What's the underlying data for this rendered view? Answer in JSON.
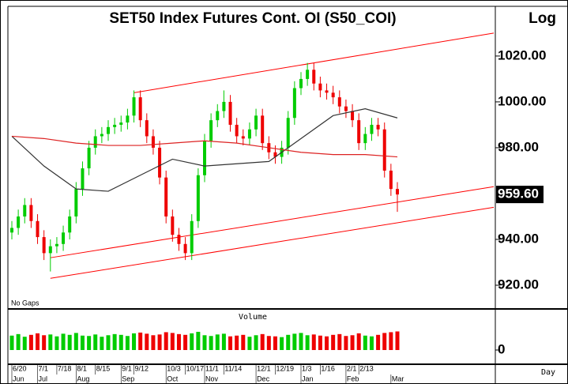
{
  "chart_data": {
    "type": "candlestick",
    "title": "SET50 Index Futures Cont. OI (S50_COI)",
    "scale_label": "Log",
    "log": false,
    "gap_label": "No Gaps",
    "period_label": "Day",
    "up_color": "#00cc00",
    "down_color": "#ee0000",
    "open": [
      943,
      945,
      950,
      955,
      948,
      941,
      934,
      937,
      938,
      943,
      950,
      962,
      971,
      980,
      985,
      986,
      989,
      990,
      991,
      994,
      1002,
      992,
      985,
      980,
      967,
      950,
      942,
      938,
      934,
      948,
      968,
      983,
      992,
      996,
      1000,
      990,
      985,
      984,
      988,
      994,
      982,
      978,
      976,
      980,
      993,
      1006,
      1010,
      1014,
      1008,
      1005,
      1004,
      1002,
      998,
      996,
      992,
      982,
      986,
      990,
      988,
      970,
      962
    ],
    "high": [
      948,
      953,
      958,
      958,
      951,
      944,
      940,
      941,
      946,
      953,
      965,
      974,
      983,
      988,
      989,
      992,
      993,
      994,
      997,
      1005,
      1005,
      995,
      988,
      983,
      970,
      953,
      945,
      941,
      951,
      971,
      986,
      995,
      999,
      1005,
      1003,
      993,
      988,
      991,
      997,
      997,
      985,
      981,
      983,
      996,
      1009,
      1013,
      1017,
      1017,
      1011,
      1008,
      1007,
      1005,
      1001,
      999,
      995,
      989,
      993,
      993,
      991,
      973,
      965
    ],
    "low": [
      940,
      942,
      947,
      945,
      938,
      931,
      926,
      934,
      935,
      940,
      947,
      959,
      968,
      977,
      982,
      983,
      986,
      987,
      988,
      991,
      989,
      982,
      977,
      964,
      947,
      939,
      935,
      931,
      931,
      945,
      965,
      980,
      989,
      993,
      987,
      982,
      981,
      981,
      985,
      979,
      975,
      973,
      973,
      977,
      990,
      1003,
      1007,
      1005,
      1002,
      1001,
      999,
      995,
      993,
      989,
      979,
      979,
      983,
      985,
      967,
      959,
      952
    ],
    "close": [
      945,
      950,
      955,
      948,
      941,
      934,
      937,
      938,
      943,
      950,
      962,
      971,
      980,
      985,
      986,
      989,
      990,
      991,
      994,
      1002,
      992,
      985,
      980,
      967,
      950,
      942,
      938,
      934,
      948,
      968,
      983,
      992,
      996,
      1000,
      990,
      985,
      984,
      988,
      994,
      982,
      978,
      976,
      980,
      993,
      1006,
      1010,
      1014,
      1008,
      1005,
      1004,
      1002,
      998,
      996,
      992,
      982,
      986,
      990,
      988,
      970,
      962,
      959.6
    ],
    "last_price": {
      "value": 959.6,
      "label": "959.60"
    },
    "ylim": [
      910,
      1041
    ],
    "yticks": [
      {
        "value": 920,
        "label": "920.00"
      },
      {
        "value": 940,
        "label": "940.00"
      },
      {
        "value": 980,
        "label": "980.00"
      },
      {
        "value": 1000,
        "label": "1000.00"
      },
      {
        "value": 1020,
        "label": "1020.00"
      }
    ],
    "xlim": [
      0,
      75
    ],
    "xticks": [
      {
        "value": 0,
        "label": "6/20"
      },
      {
        "value": 4,
        "label": "7/1"
      },
      {
        "value": 7,
        "label": "7/18"
      },
      {
        "value": 10,
        "label": "8/1"
      },
      {
        "value": 13,
        "label": "8/15"
      },
      {
        "value": 17,
        "label": "9/1"
      },
      {
        "value": 19,
        "label": "9/12"
      },
      {
        "value": 24,
        "label": "10/3"
      },
      {
        "value": 27,
        "label": "10/17"
      },
      {
        "value": 30,
        "label": "11/1"
      },
      {
        "value": 33,
        "label": "11/14"
      },
      {
        "value": 38,
        "label": "12/1"
      },
      {
        "value": 41,
        "label": "12/19"
      },
      {
        "value": 45,
        "label": "1/3"
      },
      {
        "value": 48,
        "label": "1/16"
      },
      {
        "value": 52,
        "label": "2/1"
      },
      {
        "value": 54,
        "label": "2/13"
      }
    ],
    "month_ticks": [
      {
        "value": 0,
        "label": "Jun"
      },
      {
        "value": 4,
        "label": "Jul"
      },
      {
        "value": 10,
        "label": "Aug"
      },
      {
        "value": 17,
        "label": "Sep"
      },
      {
        "value": 24,
        "label": "Oct"
      },
      {
        "value": 30,
        "label": "Nov"
      },
      {
        "value": 38,
        "label": "Dec"
      },
      {
        "value": 45,
        "label": "Jan"
      },
      {
        "value": 52,
        "label": "Feb"
      },
      {
        "value": 59,
        "label": "Mar"
      }
    ],
    "series": [
      {
        "color": "#333333",
        "x": [
          0,
          5,
          10,
          15,
          20,
          25,
          30,
          35,
          40,
          45,
          50,
          55,
          60
        ],
        "values": [
          985,
          972,
          962,
          961,
          968,
          975,
          972,
          973,
          974,
          984,
          994,
          997,
          993
        ]
      },
      {
        "color": "#dd2222",
        "x": [
          0,
          5,
          10,
          15,
          20,
          25,
          30,
          35,
          40,
          45,
          50,
          55,
          60
        ],
        "values": [
          985,
          984,
          982,
          981,
          981,
          982,
          983,
          982,
          980,
          978,
          977,
          977,
          976
        ]
      }
    ],
    "channels": [
      {
        "color": "#ff0000",
        "x": [
          19,
          75
        ],
        "y": [
          1004,
          1030
        ]
      },
      {
        "color": "#ff0000",
        "x": [
          6,
          75
        ],
        "y": [
          932,
          963
        ]
      },
      {
        "color": "#ff0000",
        "x": [
          6,
          75
        ],
        "y": [
          923,
          954
        ]
      }
    ],
    "volume": {
      "label": "Volume",
      "values": [
        38,
        42,
        35,
        40,
        44,
        39,
        41,
        36,
        43,
        40,
        45,
        38,
        37,
        41,
        35,
        39,
        42,
        40,
        37,
        44,
        46,
        43,
        39,
        41,
        47,
        45,
        42,
        40,
        44,
        48,
        39,
        37,
        41,
        43,
        36,
        38,
        40,
        35,
        39,
        42,
        37,
        36,
        34,
        40,
        43,
        45,
        39,
        41,
        38,
        36,
        40,
        42,
        37,
        39,
        44,
        38,
        36,
        40,
        45,
        47,
        49
      ],
      "ylim": [
        0,
        100
      ],
      "yticks": [
        0
      ]
    }
  }
}
